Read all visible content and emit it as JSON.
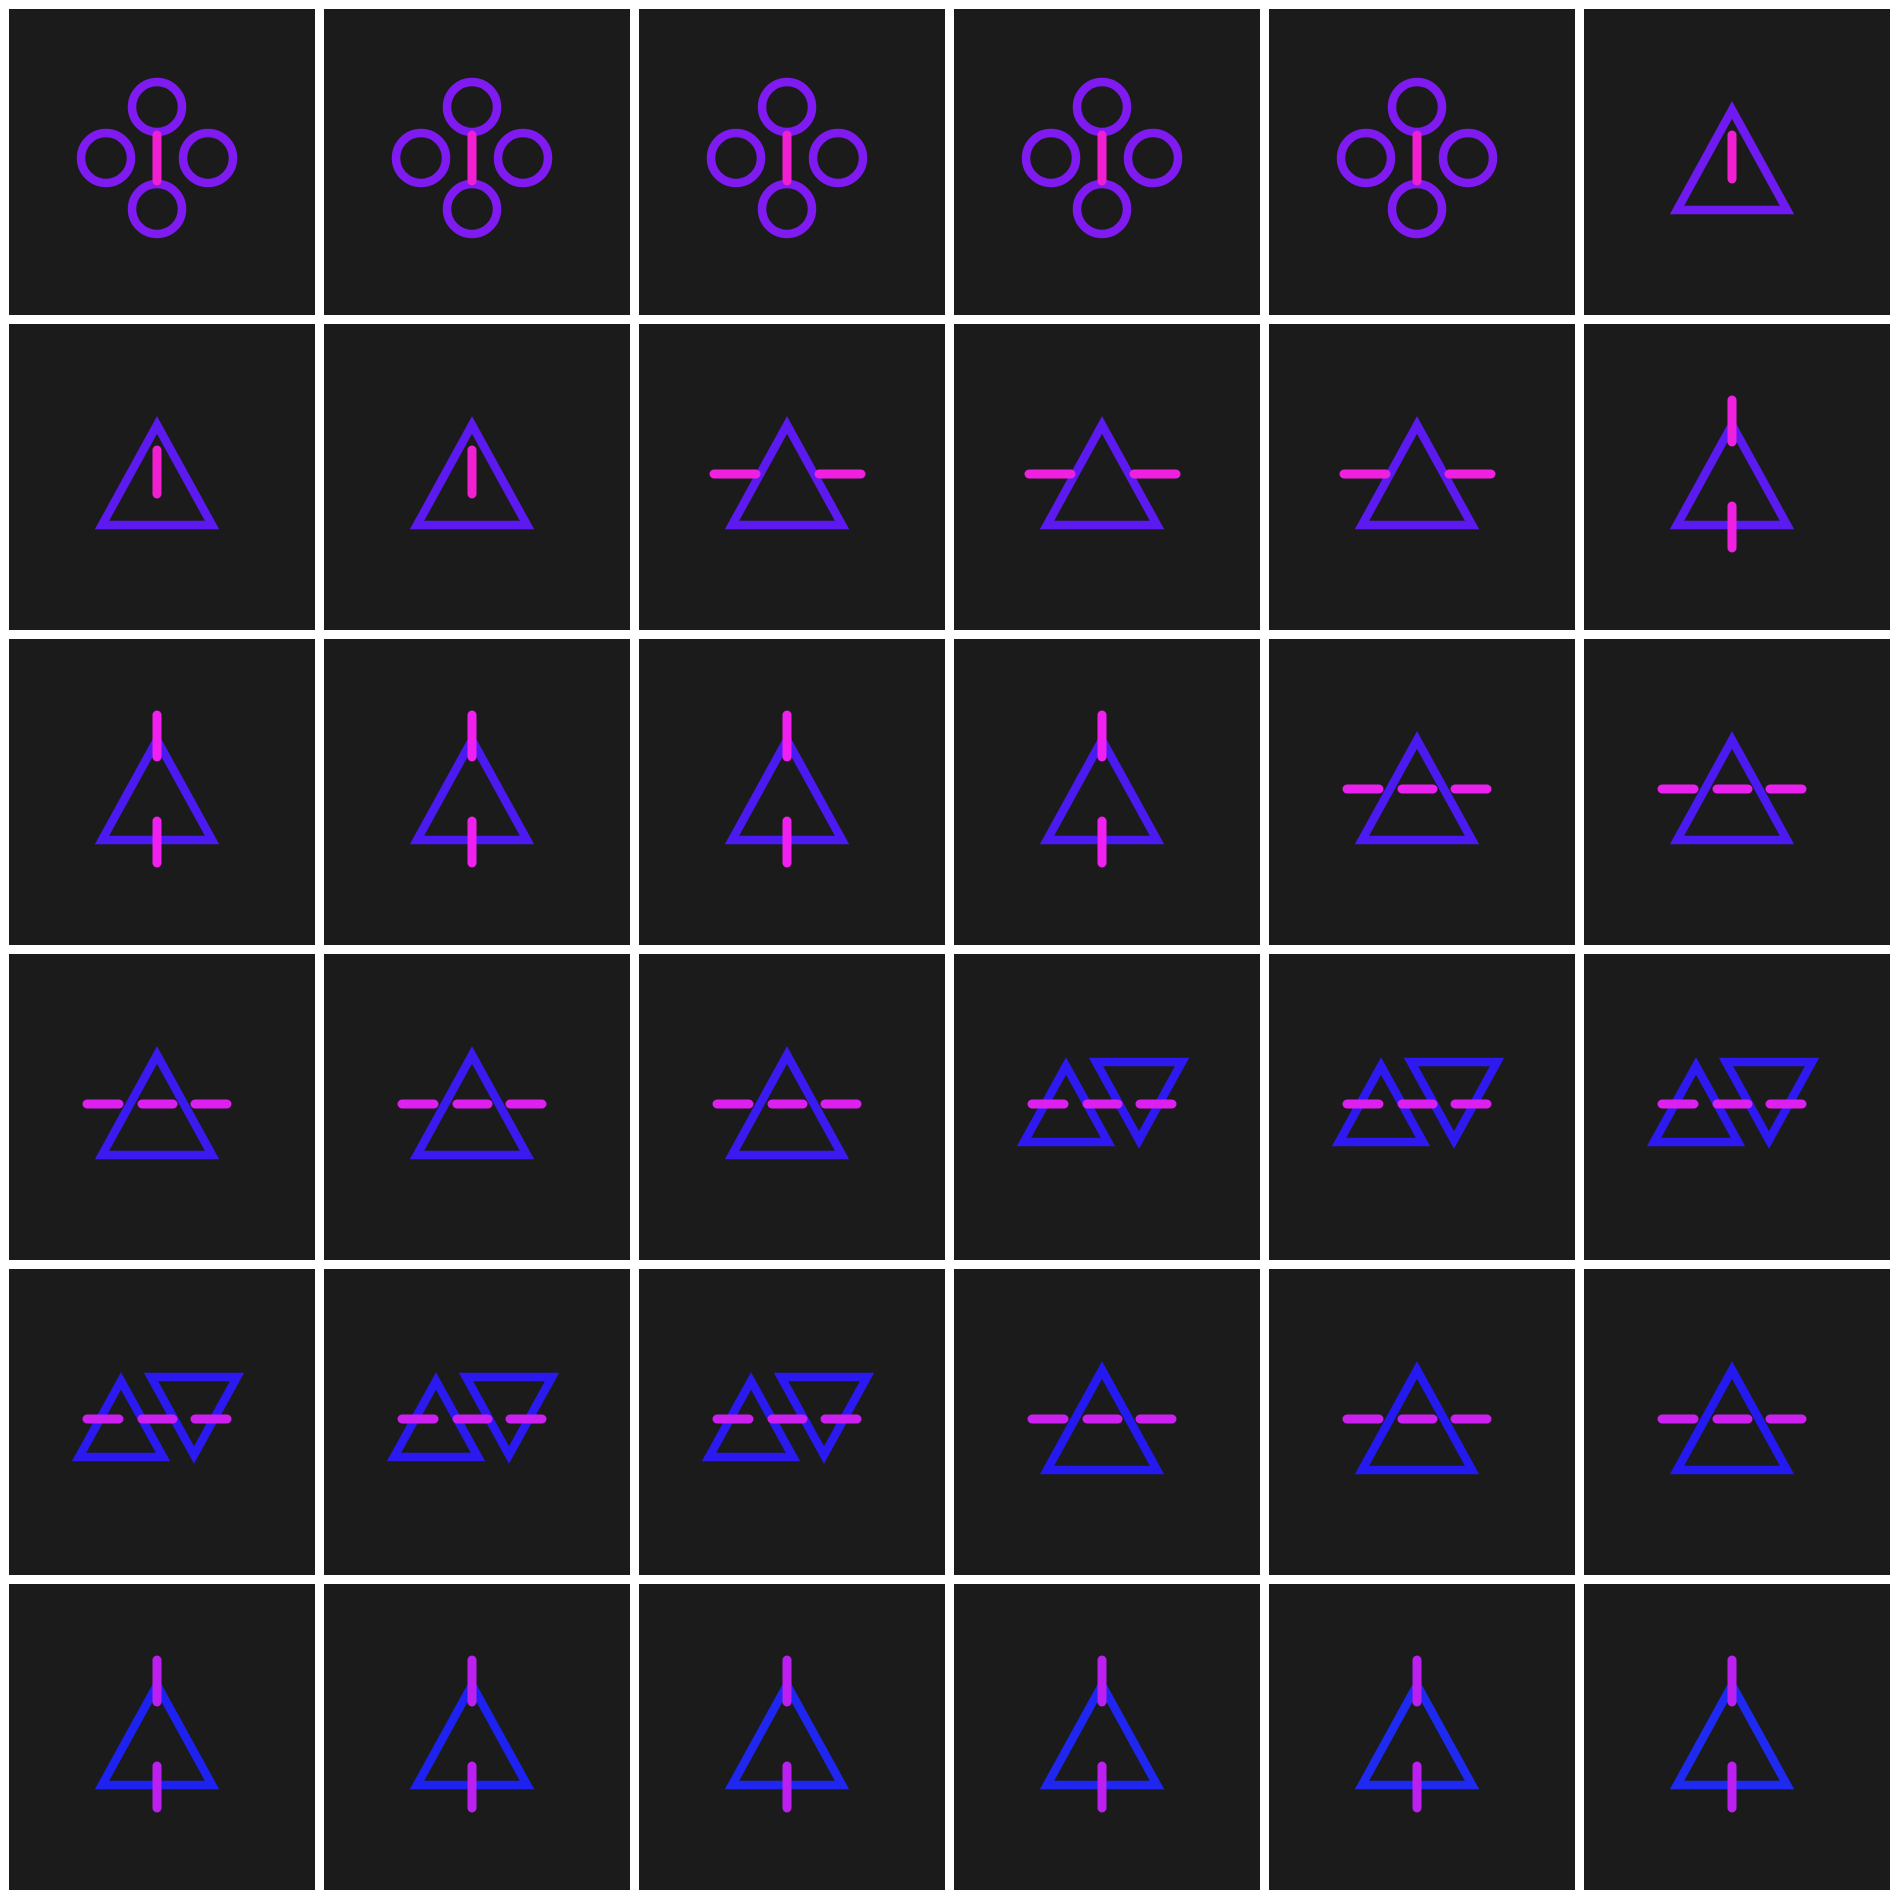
{
  "background_color": "#1b1b1b",
  "gap_color": "#ffffff",
  "grid": {
    "rows": 6,
    "columns": 6
  },
  "tiles": [
    {
      "symbol": "four-circles-bar-icon",
      "shape_color": "#7f1af0",
      "bar_color": "#f020d2"
    },
    {
      "symbol": "four-circles-bar-icon",
      "shape_color": "#7f1af0",
      "bar_color": "#f020d2"
    },
    {
      "symbol": "four-circles-bar-icon",
      "shape_color": "#7f1af0",
      "bar_color": "#f020d2"
    },
    {
      "symbol": "four-circles-bar-icon",
      "shape_color": "#7f1af0",
      "bar_color": "#f020d2"
    },
    {
      "symbol": "four-circles-bar-icon",
      "shape_color": "#7f1af0",
      "bar_color": "#f020d2"
    },
    {
      "symbol": "triangle-inner-bar-icon",
      "shape_color": "#6e1af0",
      "bar_color": "#f020d2"
    },
    {
      "symbol": "triangle-inner-bar-icon",
      "shape_color": "#5c1af0",
      "bar_color": "#f020d2"
    },
    {
      "symbol": "triangle-inner-bar-icon",
      "shape_color": "#5c1af0",
      "bar_color": "#f020d2"
    },
    {
      "symbol": "triangle-side-bars-icon",
      "shape_color": "#5c1af0",
      "bar_color": "#f020e0"
    },
    {
      "symbol": "triangle-side-bars-icon",
      "shape_color": "#5c1af0",
      "bar_color": "#f020e0"
    },
    {
      "symbol": "triangle-side-bars-icon",
      "shape_color": "#5c1af0",
      "bar_color": "#f020e0"
    },
    {
      "symbol": "triangle-vertical-bars-icon",
      "shape_color": "#5a1af0",
      "bar_color": "#f020e0"
    },
    {
      "symbol": "triangle-vertical-bars-icon",
      "shape_color": "#4a1af0",
      "bar_color": "#f020f0"
    },
    {
      "symbol": "triangle-vertical-bars-icon",
      "shape_color": "#4a1af0",
      "bar_color": "#f020f0"
    },
    {
      "symbol": "triangle-vertical-bars-icon",
      "shape_color": "#4a1af0",
      "bar_color": "#f020f0"
    },
    {
      "symbol": "triangle-vertical-bars-icon",
      "shape_color": "#4a1af0",
      "bar_color": "#f020f0"
    },
    {
      "symbol": "triangle-crossbar-icon",
      "shape_color": "#4a1af0",
      "bar_color": "#ea20f0"
    },
    {
      "symbol": "triangle-crossbar-icon",
      "shape_color": "#4a1af0",
      "bar_color": "#ea20f0"
    },
    {
      "symbol": "triangle-crossbar-icon",
      "shape_color": "#3b1af0",
      "bar_color": "#dd20f0"
    },
    {
      "symbol": "triangle-crossbar-icon",
      "shape_color": "#3b1af0",
      "bar_color": "#dd20f0"
    },
    {
      "symbol": "triangle-crossbar-icon",
      "shape_color": "#3b1af0",
      "bar_color": "#dd20f0"
    },
    {
      "symbol": "twin-triangles-bar-icon",
      "shape_color": "#2e1af0",
      "bar_color": "#dd20f0"
    },
    {
      "symbol": "twin-triangles-bar-icon",
      "shape_color": "#2e1af0",
      "bar_color": "#dd20f0"
    },
    {
      "symbol": "twin-triangles-bar-icon",
      "shape_color": "#2e1af0",
      "bar_color": "#dd20f0"
    },
    {
      "symbol": "twin-triangles-bar-icon",
      "shape_color": "#2a1af0",
      "bar_color": "#cc20f0"
    },
    {
      "symbol": "twin-triangles-bar-icon",
      "shape_color": "#2a1af0",
      "bar_color": "#cc20f0"
    },
    {
      "symbol": "twin-triangles-bar-icon",
      "shape_color": "#2a1af0",
      "bar_color": "#cc20f0"
    },
    {
      "symbol": "triangle-crossbar-icon",
      "shape_color": "#241af0",
      "bar_color": "#cc20f0"
    },
    {
      "symbol": "triangle-crossbar-icon",
      "shape_color": "#241af0",
      "bar_color": "#cc20f0"
    },
    {
      "symbol": "triangle-crossbar-icon",
      "shape_color": "#241af0",
      "bar_color": "#cc20f0"
    },
    {
      "symbol": "triangle-vertical-bars-icon",
      "shape_color": "#1e22f0",
      "bar_color": "#bb20f0"
    },
    {
      "symbol": "triangle-vertical-bars-icon",
      "shape_color": "#1e22f0",
      "bar_color": "#bb20f0"
    },
    {
      "symbol": "triangle-vertical-bars-icon",
      "shape_color": "#1e26f0",
      "bar_color": "#bb20f0"
    },
    {
      "symbol": "triangle-vertical-bars-icon",
      "shape_color": "#1e26f0",
      "bar_color": "#bb20f0"
    },
    {
      "symbol": "triangle-vertical-bars-icon",
      "shape_color": "#1e2af0",
      "bar_color": "#bb20f0"
    },
    {
      "symbol": "triangle-vertical-bars-icon",
      "shape_color": "#1e2af0",
      "bar_color": "#bb20f0"
    }
  ]
}
